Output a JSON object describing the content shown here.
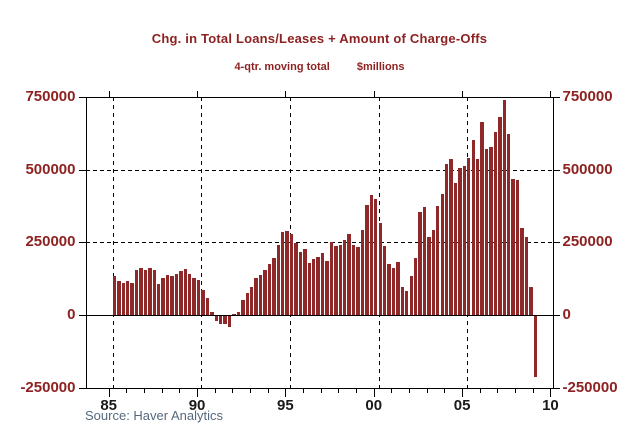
{
  "colors": {
    "accent_red": "#8e2222",
    "bar_fill": "#8f2929",
    "x_label": "#1a1a1a",
    "source_text": "#56697e",
    "grid": "#000000"
  },
  "chart_data": {
    "type": "bar",
    "title": "Chg. in Total Loans/Leases + Amount of Charge-Offs",
    "subtitle": "4-qtr. moving total",
    "units_label": "$millions",
    "source": "Source: Haver Analytics",
    "frequency": "quarterly",
    "x_start": "1985Q1",
    "x_end": "2008Q4",
    "ylim": [
      -250000,
      750000
    ],
    "y_ticks": [
      750000,
      500000,
      250000,
      0,
      -250000
    ],
    "x_tick_labels": [
      "85",
      "90",
      "95",
      "00",
      "05",
      "10"
    ],
    "grid": "dashed",
    "legend": "none",
    "values": [
      134000,
      116000,
      111000,
      116000,
      111000,
      156000,
      161000,
      156000,
      161000,
      156000,
      107000,
      127000,
      139000,
      134000,
      142000,
      150000,
      160000,
      142000,
      127000,
      121000,
      87000,
      58000,
      11000,
      -17000,
      -29000,
      -29000,
      -37000,
      3000,
      10000,
      52000,
      75000,
      98000,
      127000,
      138000,
      155000,
      175000,
      196000,
      240000,
      286000,
      290000,
      277000,
      248000,
      218000,
      228000,
      178000,
      193000,
      201000,
      213000,
      186000,
      250000,
      238000,
      242000,
      257000,
      279000,
      242000,
      234000,
      293000,
      380000,
      414000,
      400000,
      316000,
      238000,
      174000,
      163000,
      181000,
      98000,
      84000,
      133000,
      197000,
      356000,
      371000,
      267000,
      292000,
      375000,
      417000,
      521000,
      535000,
      455000,
      507000,
      514000,
      540000,
      601000,
      537000,
      663000,
      572000,
      578000,
      630000,
      682000,
      740000,
      624000,
      467000,
      465000,
      299000,
      270000,
      95000,
      -210000
    ]
  }
}
